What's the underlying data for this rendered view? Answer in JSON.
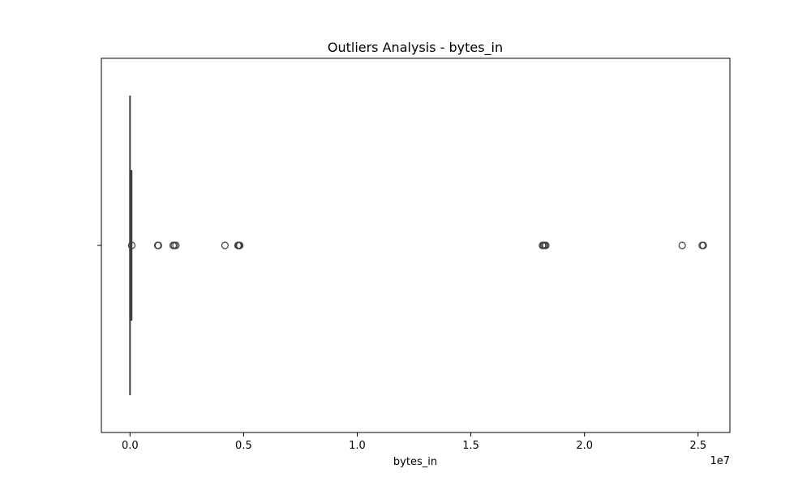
{
  "chart_data": {
    "type": "box",
    "title": "Outliers Analysis - bytes_in",
    "xlabel": "bytes_in",
    "ylabel": "",
    "x_offset_label": "1e7",
    "x_scale_factor": 10000000,
    "xlim": [
      -1260000,
      26400000
    ],
    "x_ticks": [
      {
        "value": 0,
        "label": "0.0"
      },
      {
        "value": 5000000,
        "label": "0.5"
      },
      {
        "value": 10000000,
        "label": "1.0"
      },
      {
        "value": 15000000,
        "label": "1.5"
      },
      {
        "value": 20000000,
        "label": "2.0"
      },
      {
        "value": 25000000,
        "label": "2.5"
      }
    ],
    "box": {
      "whisker_low": 0,
      "q1": 5000,
      "median": 20000,
      "q3": 60000,
      "whisker_high": 70000
    },
    "outliers": [
      75000,
      1220000,
      1250000,
      1900000,
      1950000,
      2020000,
      4180000,
      4750000,
      4780000,
      4800000,
      4830000,
      18150000,
      18200000,
      18250000,
      18300000,
      24300000,
      25180000,
      25230000
    ],
    "colors": {
      "box_line": "#3f3f3f",
      "outlier_edge": "#3f3f3f",
      "axes": "#000000"
    }
  }
}
